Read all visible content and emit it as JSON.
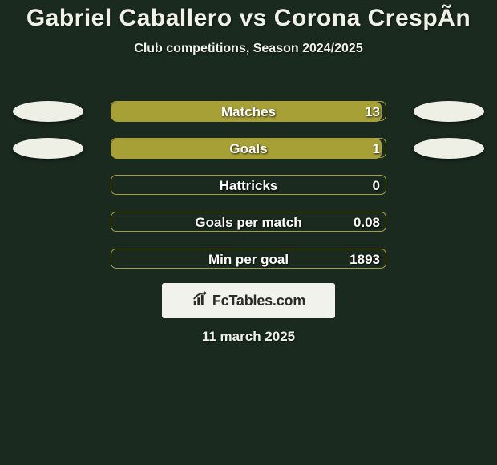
{
  "colors": {
    "background": "#1a2a1f",
    "title_color": "#f0f2e8",
    "bar_track": "#a7a036",
    "bar_fill": "#a7a036",
    "bar_track_empty": "#a7a036",
    "avatar": "#eef0e6",
    "logo_bg": "#f2f2ec",
    "logo_text": "#2a2a2a"
  },
  "title": {
    "text": "Gabriel Caballero vs Corona CrespÃ­n",
    "fontsize": 30
  },
  "subtitle": {
    "text": "Club competitions, Season 2024/2025",
    "fontsize": 16
  },
  "avatars": {
    "show_on_rows": [
      0,
      1
    ]
  },
  "rows": [
    {
      "label": "Matches",
      "value": "13",
      "left_fill": 0.98,
      "fontsize": 17
    },
    {
      "label": "Goals",
      "value": "1",
      "left_fill": 0.98,
      "fontsize": 17
    },
    {
      "label": "Hattricks",
      "value": "0",
      "left_fill": 0.0,
      "fontsize": 17
    },
    {
      "label": "Goals per match",
      "value": "0.08",
      "left_fill": 0.0,
      "fontsize": 17
    },
    {
      "label": "Min per goal",
      "value": "1893",
      "left_fill": 0.0,
      "fontsize": 17
    }
  ],
  "bar": {
    "track_width": 344,
    "height": 25,
    "radius": 7
  },
  "logo": {
    "text": "FcTables.com",
    "fontsize": 18
  },
  "date": {
    "text": "11 march 2025",
    "fontsize": 17
  }
}
